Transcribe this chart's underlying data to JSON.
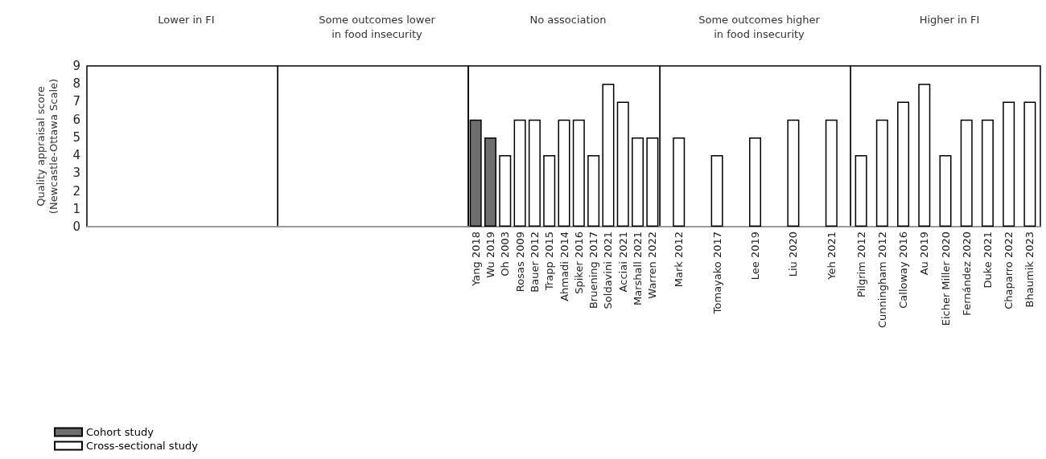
{
  "chart_data": [
    {
      "type": "bar",
      "title": "Lower in FI",
      "ylabel": "Quality appraisal score\n(Newcastle-Ottawa Scale)",
      "categories": [
        null,
        null,
        null,
        null,
        null,
        null,
        null,
        null,
        null,
        null,
        null,
        null,
        null
      ],
      "values": [
        null,
        null,
        null,
        null,
        null,
        null,
        null,
        null,
        null,
        null,
        null,
        null,
        null
      ],
      "ylim": [
        0,
        9
      ],
      "yticks": [
        0,
        1,
        2,
        3,
        4,
        5,
        6,
        7,
        8,
        9
      ],
      "tick_labels": "y"
    },
    {
      "type": "other",
      "title": "Some outcomes lower\nin food insecurity"
    },
    {
      "type": "bar",
      "title": "No association",
      "categories": [
        "Yang 2018",
        "Wu 2019",
        "Oh 2003",
        "Rosas 2009",
        "Bauer 2012",
        "Trapp 2015",
        "Ahmadi 2014",
        "Spiker 2016",
        "Bruening 2017",
        "Soldavini 2021",
        "Acciai 2021",
        "Marshall 2021",
        "Warren 2022"
      ],
      "ylim": [
        0,
        9
      ],
      "yticks": [
        0,
        1,
        2,
        3,
        4,
        5,
        6,
        7,
        8,
        9
      ],
      "tick_labels": "x",
      "legend": "bottom left",
      "series": [
        {
          "name": "Cohort study",
          "color": "#6e6e6e",
          "values": [
            6,
            5,
            null,
            null,
            null,
            null,
            null,
            null,
            null,
            null,
            null,
            null,
            null
          ]
        },
        {
          "name": "Cross-sectional study",
          "color": "#ffffff",
          "values": [
            null,
            null,
            4,
            6,
            6,
            4,
            6,
            6,
            4,
            8,
            7,
            5,
            5
          ]
        }
      ]
    },
    {
      "type": "bar",
      "title": "Some outcomes higher\nin food insecurity",
      "categories": [
        "Mark 2012",
        "Tomayako 2017",
        "Lee 2019",
        "Liu 2020",
        "Yeh 2021"
      ],
      "ylim": [
        0,
        9
      ],
      "yticks": [
        0,
        1,
        2,
        3,
        4,
        5,
        6,
        7,
        8,
        9
      ],
      "tick_labels": "x",
      "series": [
        {
          "color": "#ffffff",
          "values": [
            5,
            4,
            5,
            6,
            6
          ]
        }
      ]
    },
    {
      "type": "bar",
      "title": "Higher in FI",
      "categories": [
        "Pilgrim 2012",
        "Cunningham 2012",
        "Calloway 2016",
        "Au 2019",
        "Eicher Miller 2020",
        "Fernández 2020",
        "Duke 2021",
        "Chaparro 2022",
        "Bhaumik 2023"
      ],
      "ylim": [
        0,
        9
      ],
      "yticks": [
        0,
        1,
        2,
        3,
        4,
        5,
        6,
        7,
        8,
        9
      ],
      "tick_labels": "x",
      "series": [
        {
          "color": "#ffffff",
          "values": [
            4,
            6,
            7,
            8,
            4,
            6,
            6,
            7,
            7
          ]
        }
      ]
    }
  ]
}
